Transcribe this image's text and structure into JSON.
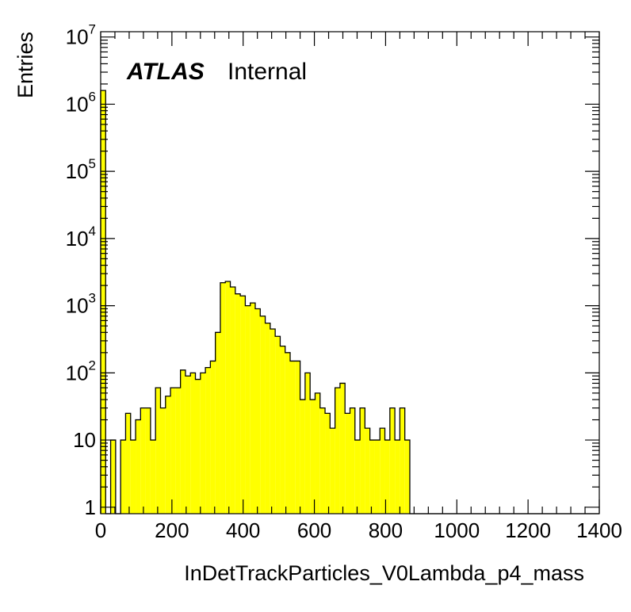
{
  "chart_data": {
    "type": "bar",
    "subtype": "histogram",
    "xlabel": "InDetTrackParticles_V0Lambda_p4_mass",
    "ylabel": "Entries",
    "label_bold": "ATLAS",
    "label_status": "Internal",
    "xlim": [
      0,
      1400
    ],
    "ylim": [
      0.8,
      12000000
    ],
    "y_scale": "log",
    "x_tick_labels": [
      "0",
      "200",
      "400",
      "600",
      "800",
      "1000",
      "1200",
      "1400"
    ],
    "y_tick_labels": [
      {
        "base": "1",
        "exp": ""
      },
      {
        "base": "10",
        "exp": ""
      },
      {
        "base": "10",
        "exp": "2"
      },
      {
        "base": "10",
        "exp": "3"
      },
      {
        "base": "10",
        "exp": "4"
      },
      {
        "base": "10",
        "exp": "5"
      },
      {
        "base": "10",
        "exp": "6"
      },
      {
        "base": "10",
        "exp": "7"
      }
    ],
    "bin_width": 14,
    "bin_start": 0,
    "values": [
      1600000,
      0,
      10,
      0,
      10,
      25,
      10,
      20,
      30,
      30,
      10,
      60,
      30,
      45,
      60,
      60,
      110,
      90,
      100,
      80,
      100,
      120,
      150,
      400,
      2200,
      2300,
      1900,
      1500,
      1400,
      1000,
      1100,
      900,
      700,
      550,
      450,
      350,
      250,
      200,
      150,
      150,
      40,
      100,
      40,
      50,
      30,
      25,
      15,
      60,
      70,
      25,
      30,
      10,
      30,
      15,
      10,
      10,
      15,
      10,
      30,
      10,
      30,
      10,
      0,
      0,
      0,
      0,
      0,
      0,
      0,
      0,
      0,
      0,
      0,
      0,
      0,
      0,
      0,
      0,
      0,
      0,
      0,
      0,
      0,
      0,
      0,
      0,
      0,
      0,
      0,
      0,
      0,
      0,
      0,
      0,
      0,
      0,
      0,
      0,
      0,
      0
    ],
    "bar_color": "#ffff00",
    "line_color": "#000000",
    "grid": false
  }
}
